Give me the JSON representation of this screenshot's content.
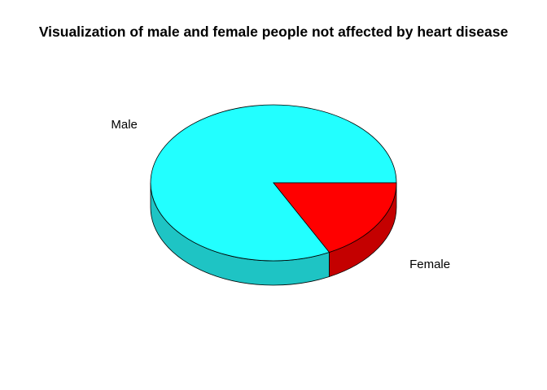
{
  "chart_data": {
    "type": "pie",
    "style": "3d",
    "title": "Visualization of male and female people not affected by heart disease",
    "categories": [
      "Male",
      "Female"
    ],
    "values": [
      82.5,
      17.5
    ],
    "unit": "percent",
    "colors": {
      "Male": "#22ffff",
      "Female": "#ff0000",
      "Male_side": "#1ec4c4",
      "Female_side": "#c40000",
      "outline": "#000000"
    },
    "start_angle_deg": 0,
    "direction": "counterclockwise-from-right"
  }
}
